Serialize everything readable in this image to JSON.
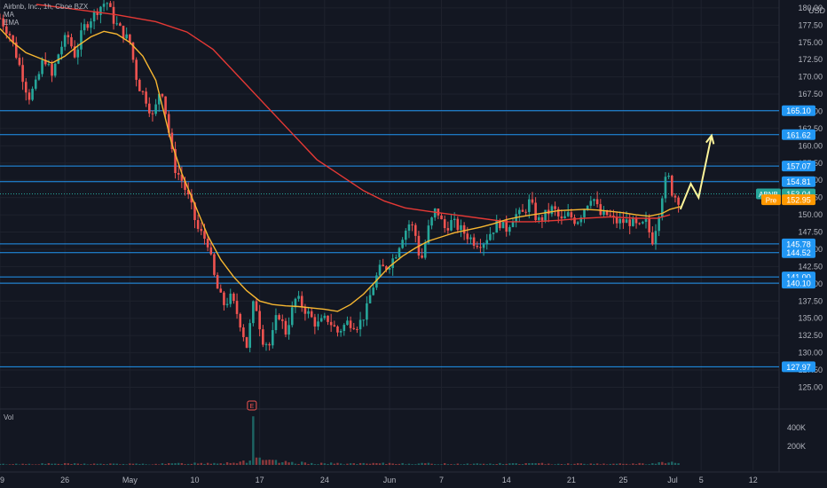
{
  "chart_data": {
    "type": "candlestick",
    "legend": {
      "symbol_line": "Airbnb, Inc., 1h, Cboe BZX",
      "ma_label": "MA",
      "ema_label": "EMA"
    },
    "currency": "USD",
    "volume_label": "Vol",
    "y_ticks": [
      "180.00",
      "177.50",
      "175.00",
      "172.50",
      "170.00",
      "167.50",
      "165.00",
      "162.50",
      "160.00",
      "157.50",
      "155.00",
      "152.50",
      "150.00",
      "147.50",
      "145.00",
      "142.50",
      "140.00",
      "137.50",
      "135.00",
      "132.50",
      "130.00",
      "127.50",
      "125.00"
    ],
    "ylim": [
      123.0,
      180.5
    ],
    "vol_ticks": [
      "400K",
      "200K"
    ],
    "vol_max": 560000,
    "x_ticks": [
      {
        "label": "19",
        "i": 0
      },
      {
        "label": "26",
        "i": 25
      },
      {
        "label": "May",
        "i": 50
      },
      {
        "label": "10",
        "i": 75
      },
      {
        "label": "17",
        "i": 100
      },
      {
        "label": "24",
        "i": 125
      },
      {
        "label": "Jun",
        "i": 150
      },
      {
        "label": "7",
        "i": 170
      },
      {
        "label": "14",
        "i": 195
      },
      {
        "label": "21",
        "i": 220
      },
      {
        "label": "25",
        "i": 240
      },
      {
        "label": "Jul",
        "i": 259
      },
      {
        "label": "5",
        "i": 270
      },
      {
        "label": "12",
        "i": 290
      }
    ],
    "x_range": [
      0,
      300
    ],
    "levels": [
      {
        "value": 165.1,
        "label": "165.10"
      },
      {
        "value": 161.62,
        "label": "161.62"
      },
      {
        "value": 157.07,
        "label": "157.07"
      },
      {
        "value": 154.81,
        "label": "154.81"
      },
      {
        "value": 145.78,
        "label": "145.78"
      },
      {
        "value": 144.52,
        "label": "144.52"
      },
      {
        "value": 141.0,
        "label": "141.00"
      },
      {
        "value": 140.1,
        "label": "140.10"
      },
      {
        "value": 127.97,
        "label": "127.97"
      }
    ],
    "last_price": {
      "symbol": "ABNB",
      "value": 153.04,
      "label": "153.04"
    },
    "pre_market": {
      "tag": "Pre",
      "value": 152.95,
      "label": "152.95"
    },
    "earnings_marker": {
      "label": "E",
      "i": 97
    },
    "price_path": [
      [
        0,
        178.5
      ],
      [
        4,
        176
      ],
      [
        8,
        171
      ],
      [
        11,
        167
      ],
      [
        14,
        169
      ],
      [
        17,
        173
      ],
      [
        20,
        170
      ],
      [
        23,
        174
      ],
      [
        26,
        176
      ],
      [
        29,
        173
      ],
      [
        32,
        177
      ],
      [
        35,
        178.5
      ],
      [
        38,
        180
      ],
      [
        41,
        181
      ],
      [
        44,
        178
      ],
      [
        47,
        176.5
      ],
      [
        50,
        175
      ],
      [
        53,
        169
      ],
      [
        56,
        167
      ],
      [
        59,
        164
      ],
      [
        62,
        169
      ],
      [
        65,
        162
      ],
      [
        67,
        157
      ],
      [
        70,
        155
      ],
      [
        73,
        152
      ],
      [
        76,
        148
      ],
      [
        80,
        146
      ],
      [
        83,
        140
      ],
      [
        86,
        137
      ],
      [
        89,
        138
      ],
      [
        92,
        135
      ],
      [
        95,
        131
      ],
      [
        98,
        138
      ],
      [
        101,
        132
      ],
      [
        104,
        131
      ],
      [
        107,
        136
      ],
      [
        110,
        133
      ],
      [
        114,
        138
      ],
      [
        118,
        136
      ],
      [
        122,
        134
      ],
      [
        126,
        135
      ],
      [
        130,
        133
      ],
      [
        134,
        134.5
      ],
      [
        138,
        134
      ],
      [
        141,
        136
      ],
      [
        143,
        139
      ],
      [
        146,
        142
      ],
      [
        149,
        142.5
      ],
      [
        152,
        144
      ],
      [
        155,
        147
      ],
      [
        158,
        149
      ],
      [
        160,
        147
      ],
      [
        162,
        143
      ],
      [
        165,
        148
      ],
      [
        168,
        151
      ],
      [
        171,
        148
      ],
      [
        174,
        149
      ],
      [
        177,
        148
      ],
      [
        180,
        147
      ],
      [
        183,
        146
      ],
      [
        186,
        146
      ],
      [
        189,
        147.5
      ],
      [
        192,
        149
      ],
      [
        195,
        148
      ],
      [
        198,
        150
      ],
      [
        201,
        150
      ],
      [
        204,
        152
      ],
      [
        207,
        149
      ],
      [
        210,
        150
      ],
      [
        213,
        151
      ],
      [
        216,
        149
      ],
      [
        219,
        150
      ],
      [
        222,
        149
      ],
      [
        225,
        151
      ],
      [
        228,
        153
      ],
      [
        231,
        150
      ],
      [
        234,
        150
      ],
      [
        237,
        149
      ],
      [
        240,
        149
      ],
      [
        243,
        149
      ],
      [
        246,
        148
      ],
      [
        249,
        149
      ],
      [
        251,
        146
      ],
      [
        253,
        149
      ],
      [
        255,
        153
      ],
      [
        257,
        156
      ],
      [
        259,
        153
      ],
      [
        262,
        152
      ]
    ],
    "ma_path": [
      [
        14,
        180.5
      ],
      [
        25,
        180
      ],
      [
        45,
        179
      ],
      [
        60,
        178
      ],
      [
        72,
        176.5
      ],
      [
        82,
        174
      ],
      [
        92,
        170
      ],
      [
        102,
        166
      ],
      [
        112,
        162
      ],
      [
        122,
        158
      ],
      [
        132,
        155.5
      ],
      [
        140,
        153.5
      ],
      [
        148,
        152
      ],
      [
        156,
        151
      ],
      [
        165,
        150.5
      ],
      [
        175,
        150
      ],
      [
        185,
        149.5
      ],
      [
        195,
        149
      ],
      [
        205,
        149
      ],
      [
        215,
        149.2
      ],
      [
        225,
        149.5
      ],
      [
        235,
        149.7
      ],
      [
        245,
        149.5
      ],
      [
        253,
        149.5
      ],
      [
        258,
        150
      ]
    ],
    "ema_path": [
      [
        0,
        177
      ],
      [
        5,
        175
      ],
      [
        10,
        173.5
      ],
      [
        20,
        172
      ],
      [
        25,
        173
      ],
      [
        30,
        174.5
      ],
      [
        35,
        175.8
      ],
      [
        40,
        176.6
      ],
      [
        45,
        176.2
      ],
      [
        50,
        175
      ],
      [
        55,
        173
      ],
      [
        60,
        169.5
      ],
      [
        63,
        165
      ],
      [
        66,
        160.5
      ],
      [
        70,
        156
      ],
      [
        75,
        151.5
      ],
      [
        80,
        147
      ],
      [
        85,
        143.5
      ],
      [
        90,
        141
      ],
      [
        95,
        139
      ],
      [
        100,
        137.5
      ],
      [
        105,
        137
      ],
      [
        110,
        136.8
      ],
      [
        115,
        136.7
      ],
      [
        120,
        136.5
      ],
      [
        125,
        136.3
      ],
      [
        130,
        136
      ],
      [
        135,
        137
      ],
      [
        140,
        138.5
      ],
      [
        145,
        140.5
      ],
      [
        150,
        142.5
      ],
      [
        155,
        144
      ],
      [
        160,
        145.2
      ],
      [
        165,
        146.2
      ],
      [
        170,
        146.8
      ],
      [
        175,
        147.4
      ],
      [
        180,
        147.8
      ],
      [
        185,
        148.2
      ],
      [
        190,
        148.7
      ],
      [
        195,
        149.3
      ],
      [
        200,
        149.7
      ],
      [
        205,
        150
      ],
      [
        210,
        150.3
      ],
      [
        215,
        150.6
      ],
      [
        220,
        150.7
      ],
      [
        225,
        150.8
      ],
      [
        230,
        150.7
      ],
      [
        235,
        150.5
      ],
      [
        240,
        150.3
      ],
      [
        245,
        150
      ],
      [
        250,
        149.8
      ],
      [
        255,
        150.2
      ],
      [
        258,
        150.8
      ],
      [
        262,
        151.2
      ]
    ],
    "projection_path": [
      [
        262,
        150.8
      ],
      [
        266,
        154.5
      ],
      [
        269,
        152.5
      ],
      [
        274,
        161.5
      ]
    ],
    "volume_path": [
      [
        0,
        8000
      ],
      [
        20,
        12000
      ],
      [
        40,
        10000
      ],
      [
        60,
        9000
      ],
      [
        70,
        15000
      ],
      [
        80,
        20000
      ],
      [
        90,
        25000
      ],
      [
        95,
        40000
      ],
      [
        97,
        70000
      ],
      [
        99,
        50000
      ],
      [
        105,
        35000
      ],
      [
        110,
        25000
      ],
      [
        120,
        18000
      ],
      [
        130,
        14000
      ],
      [
        140,
        12000
      ],
      [
        150,
        15000
      ],
      [
        160,
        14000
      ],
      [
        170,
        12000
      ],
      [
        180,
        11000
      ],
      [
        190,
        12000
      ],
      [
        200,
        14000
      ],
      [
        210,
        13000
      ],
      [
        220,
        12000
      ],
      [
        230,
        12000
      ],
      [
        240,
        10000
      ],
      [
        250,
        13000
      ],
      [
        255,
        20000
      ],
      [
        258,
        25000
      ],
      [
        262,
        22000
      ]
    ],
    "colors": {
      "background": "#131722",
      "up": "#26a69a",
      "down": "#ef5350",
      "ma": "#e53935",
      "ema": "#f7b731",
      "level": "#2196f3",
      "label_bg": "#2196f3",
      "last_price_bg": "#26a69a",
      "pre_bg": "#ff9800",
      "projection": "#fdf59a",
      "grid": "#1e222d",
      "text": "#b2b5be"
    }
  }
}
